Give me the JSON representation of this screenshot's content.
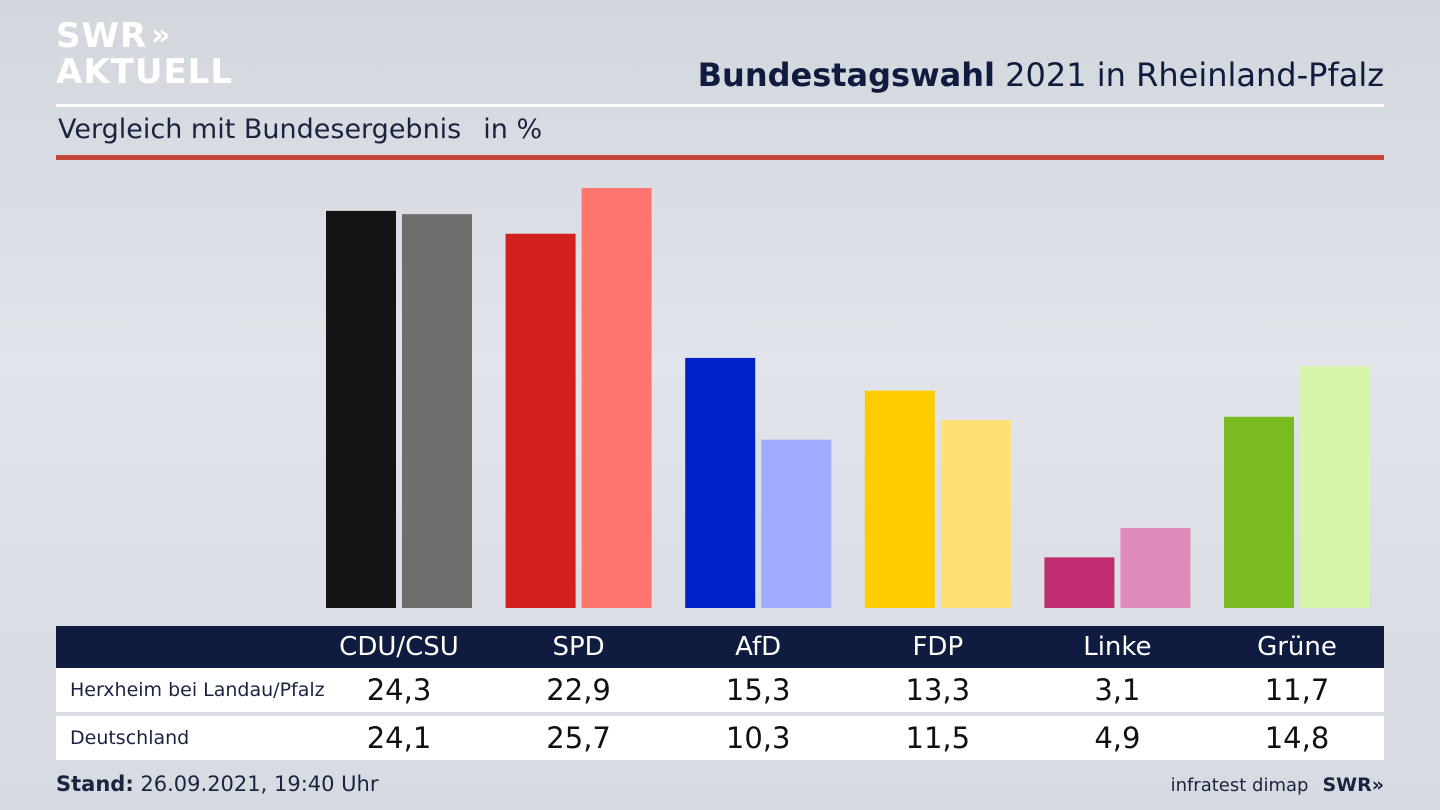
{
  "header": {
    "logo_line1": "SWR",
    "logo_arrows": "»",
    "logo_line2": "AKTUELL",
    "title_bold": "Bundestagswahl",
    "title_rest": " 2021 in Rheinland-Pfalz",
    "subtitle": "Vergleich mit Bundesergebnis",
    "unit": "in %"
  },
  "colors": {
    "CDU/CSU": [
      "#141414",
      "#706e6c"
    ],
    "SPD": [
      "#d41f1f",
      "#ff766e"
    ],
    "AfD": [
      "#0021c7",
      "#9eadff"
    ],
    "FDP": [
      "#ffcc00",
      "#ffe173"
    ],
    "Linke": [
      "#bf2e73",
      "#df8ab8"
    ],
    "Grüne": [
      "#79bb20",
      "#d5f5a8"
    ]
  },
  "chart_data": {
    "type": "bar",
    "categories": [
      "CDU/CSU",
      "SPD",
      "AfD",
      "FDP",
      "Linke",
      "Grüne"
    ],
    "series": [
      {
        "name": "Herxheim bei Landau/Pfalz",
        "values": [
          24.3,
          22.9,
          15.3,
          13.3,
          3.1,
          11.7
        ]
      },
      {
        "name": "Deutschland",
        "values": [
          24.1,
          25.7,
          10.3,
          11.5,
          4.9,
          14.8
        ]
      }
    ],
    "ylim": [
      0,
      25.7
    ],
    "grid": false
  },
  "table": {
    "headers": [
      "CDU/CSU",
      "SPD",
      "AfD",
      "FDP",
      "Linke",
      "Grüne"
    ],
    "rows": [
      {
        "label": "Herxheim bei Landau/Pfalz",
        "values": [
          "24,3",
          "22,9",
          "15,3",
          "13,3",
          "3,1",
          "11,7"
        ]
      },
      {
        "label": "Deutschland",
        "values": [
          "24,1",
          "25,7",
          "10,3",
          "11,5",
          "4,9",
          "14,8"
        ]
      }
    ]
  },
  "footer": {
    "stand_label": "Stand:",
    "stand_value": " 26.09.2021, 19:40 Uhr",
    "source": "infratest dimap",
    "brand": "SWR»"
  }
}
